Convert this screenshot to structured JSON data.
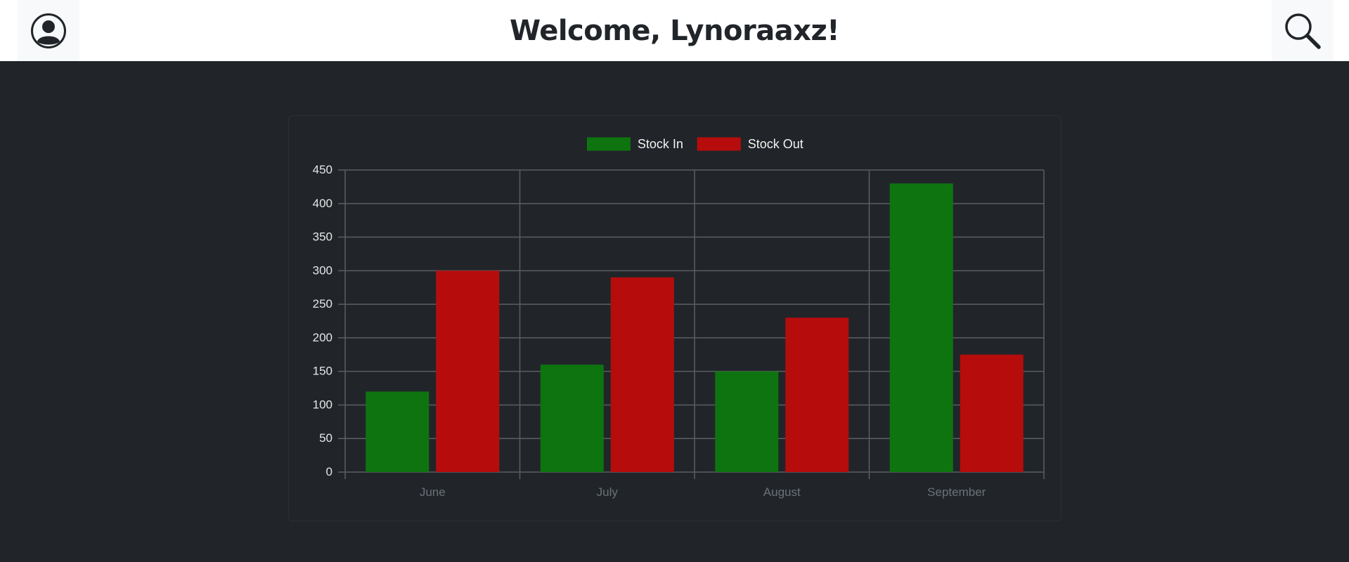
{
  "header": {
    "title": "Welcome, Lynoraaxz!",
    "profile_icon": "user-circle-icon",
    "search_icon": "search-icon"
  },
  "colors": {
    "background": "#212529",
    "header_bg": "#ffffff",
    "stock_in": "#0e7410",
    "stock_out": "#b70c0c"
  },
  "chart_data": {
    "type": "bar",
    "categories": [
      "June",
      "July",
      "August",
      "September"
    ],
    "series": [
      {
        "name": "Stock In",
        "values": [
          120,
          160,
          150,
          430
        ]
      },
      {
        "name": "Stock Out",
        "values": [
          300,
          290,
          230,
          175
        ]
      }
    ],
    "yticks": [
      "0",
      "50",
      "100",
      "150",
      "200",
      "250",
      "300",
      "350",
      "400",
      "450"
    ],
    "ylim": [
      0,
      450
    ],
    "grid": true,
    "legend_position": "top-center"
  }
}
